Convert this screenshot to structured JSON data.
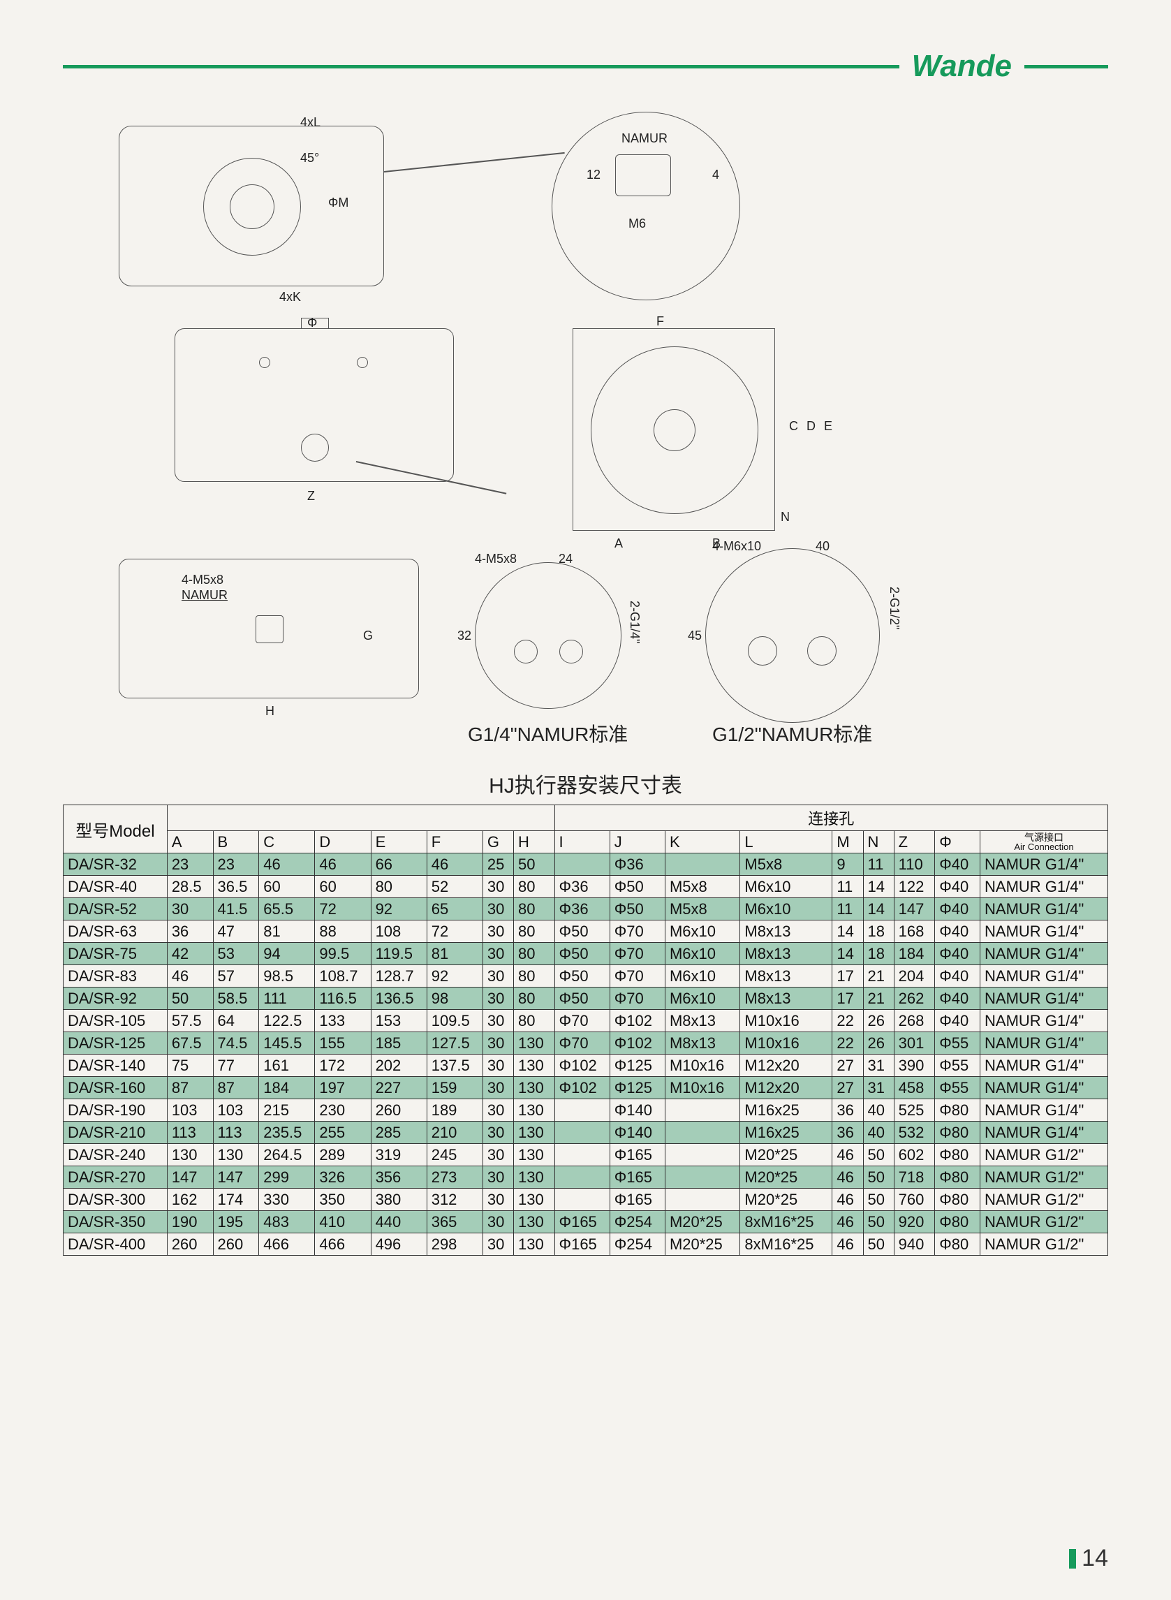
{
  "brand": "Wande",
  "diagrams": {
    "top_view_labels": {
      "holes_top": "4xL",
      "angle": "45°",
      "holes_bottom": "4xK",
      "dim_m": "ΦM"
    },
    "namur_detail": {
      "title": "NAMUR",
      "h1": "12",
      "h2": "4",
      "thread": "M6"
    },
    "side_view": {
      "dim_z": "Z",
      "dim_phi": "Φ"
    },
    "end_view": {
      "F": "F",
      "A": "A",
      "B": "B",
      "C": "C",
      "D": "D",
      "E": "E",
      "N": "N"
    },
    "bottom_view": {
      "callout": "4-M5x8",
      "namur": "NAMUR",
      "G": "G",
      "H": "H"
    },
    "g14_detail": {
      "callout": "4-M5x8",
      "w": "24",
      "h": "32",
      "port": "2-G1/4\"",
      "caption": "G1/4\"NAMUR标准"
    },
    "g12_detail": {
      "callout": "4-M6x10",
      "w": "40",
      "h": "45",
      "port": "2-G1/2\"",
      "caption": "G1/2\"NAMUR标准"
    }
  },
  "table": {
    "title": "HJ执行器安装尺寸表",
    "model_header": "型号Model",
    "group_header": "连接孔",
    "air_header_cn": "气源接口",
    "air_header_en": "Air Connection",
    "cols": [
      "A",
      "B",
      "C",
      "D",
      "E",
      "F",
      "G",
      "H",
      "I",
      "J",
      "K",
      "L",
      "M",
      "N",
      "Z",
      "Φ"
    ],
    "rows": [
      {
        "m": "DA/SR-32",
        "v": [
          "23",
          "23",
          "46",
          "46",
          "66",
          "46",
          "25",
          "50",
          "",
          "Φ36",
          "",
          "M5x8",
          "9",
          "11",
          "110",
          "Φ40",
          "NAMUR G1/4\""
        ],
        "s": true
      },
      {
        "m": "DA/SR-40",
        "v": [
          "28.5",
          "36.5",
          "60",
          "60",
          "80",
          "52",
          "30",
          "80",
          "Φ36",
          "Φ50",
          "M5x8",
          "M6x10",
          "11",
          "14",
          "122",
          "Φ40",
          "NAMUR G1/4\""
        ],
        "s": false
      },
      {
        "m": "DA/SR-52",
        "v": [
          "30",
          "41.5",
          "65.5",
          "72",
          "92",
          "65",
          "30",
          "80",
          "Φ36",
          "Φ50",
          "M5x8",
          "M6x10",
          "11",
          "14",
          "147",
          "Φ40",
          "NAMUR G1/4\""
        ],
        "s": true
      },
      {
        "m": "DA/SR-63",
        "v": [
          "36",
          "47",
          "81",
          "88",
          "108",
          "72",
          "30",
          "80",
          "Φ50",
          "Φ70",
          "M6x10",
          "M8x13",
          "14",
          "18",
          "168",
          "Φ40",
          "NAMUR G1/4\""
        ],
        "s": false
      },
      {
        "m": "DA/SR-75",
        "v": [
          "42",
          "53",
          "94",
          "99.5",
          "119.5",
          "81",
          "30",
          "80",
          "Φ50",
          "Φ70",
          "M6x10",
          "M8x13",
          "14",
          "18",
          "184",
          "Φ40",
          "NAMUR G1/4\""
        ],
        "s": true
      },
      {
        "m": "DA/SR-83",
        "v": [
          "46",
          "57",
          "98.5",
          "108.7",
          "128.7",
          "92",
          "30",
          "80",
          "Φ50",
          "Φ70",
          "M6x10",
          "M8x13",
          "17",
          "21",
          "204",
          "Φ40",
          "NAMUR G1/4\""
        ],
        "s": false
      },
      {
        "m": "DA/SR-92",
        "v": [
          "50",
          "58.5",
          "111",
          "116.5",
          "136.5",
          "98",
          "30",
          "80",
          "Φ50",
          "Φ70",
          "M6x10",
          "M8x13",
          "17",
          "21",
          "262",
          "Φ40",
          "NAMUR G1/4\""
        ],
        "s": true
      },
      {
        "m": "DA/SR-105",
        "v": [
          "57.5",
          "64",
          "122.5",
          "133",
          "153",
          "109.5",
          "30",
          "80",
          "Φ70",
          "Φ102",
          "M8x13",
          "M10x16",
          "22",
          "26",
          "268",
          "Φ40",
          "NAMUR G1/4\""
        ],
        "s": false
      },
      {
        "m": "DA/SR-125",
        "v": [
          "67.5",
          "74.5",
          "145.5",
          "155",
          "185",
          "127.5",
          "30",
          "130",
          "Φ70",
          "Φ102",
          "M8x13",
          "M10x16",
          "22",
          "26",
          "301",
          "Φ55",
          "NAMUR G1/4\""
        ],
        "s": true
      },
      {
        "m": "DA/SR-140",
        "v": [
          "75",
          "77",
          "161",
          "172",
          "202",
          "137.5",
          "30",
          "130",
          "Φ102",
          "Φ125",
          "M10x16",
          "M12x20",
          "27",
          "31",
          "390",
          "Φ55",
          "NAMUR G1/4\""
        ],
        "s": false
      },
      {
        "m": "DA/SR-160",
        "v": [
          "87",
          "87",
          "184",
          "197",
          "227",
          "159",
          "30",
          "130",
          "Φ102",
          "Φ125",
          "M10x16",
          "M12x20",
          "27",
          "31",
          "458",
          "Φ55",
          "NAMUR G1/4\""
        ],
        "s": true
      },
      {
        "m": "DA/SR-190",
        "v": [
          "103",
          "103",
          "215",
          "230",
          "260",
          "189",
          "30",
          "130",
          "",
          "Φ140",
          "",
          "M16x25",
          "36",
          "40",
          "525",
          "Φ80",
          "NAMUR G1/4\""
        ],
        "s": false
      },
      {
        "m": "DA/SR-210",
        "v": [
          "113",
          "113",
          "235.5",
          "255",
          "285",
          "210",
          "30",
          "130",
          "",
          "Φ140",
          "",
          "M16x25",
          "36",
          "40",
          "532",
          "Φ80",
          "NAMUR G1/4\""
        ],
        "s": true
      },
      {
        "m": "DA/SR-240",
        "v": [
          "130",
          "130",
          "264.5",
          "289",
          "319",
          "245",
          "30",
          "130",
          "",
          "Φ165",
          "",
          "M20*25",
          "46",
          "50",
          "602",
          "Φ80",
          "NAMUR G1/2\""
        ],
        "s": false
      },
      {
        "m": "DA/SR-270",
        "v": [
          "147",
          "147",
          "299",
          "326",
          "356",
          "273",
          "30",
          "130",
          "",
          "Φ165",
          "",
          "M20*25",
          "46",
          "50",
          "718",
          "Φ80",
          "NAMUR G1/2\""
        ],
        "s": true
      },
      {
        "m": "DA/SR-300",
        "v": [
          "162",
          "174",
          "330",
          "350",
          "380",
          "312",
          "30",
          "130",
          "",
          "Φ165",
          "",
          "M20*25",
          "46",
          "50",
          "760",
          "Φ80",
          "NAMUR G1/2\""
        ],
        "s": false
      },
      {
        "m": "DA/SR-350",
        "v": [
          "190",
          "195",
          "483",
          "410",
          "440",
          "365",
          "30",
          "130",
          "Φ165",
          "Φ254",
          "M20*25",
          "8xM16*25",
          "46",
          "50",
          "920",
          "Φ80",
          "NAMUR G1/2\""
        ],
        "s": true
      },
      {
        "m": "DA/SR-400",
        "v": [
          "260",
          "260",
          "466",
          "466",
          "496",
          "298",
          "30",
          "130",
          "Φ165",
          "Φ254",
          "M20*25",
          "8xM16*25",
          "46",
          "50",
          "940",
          "Φ80",
          "NAMUR G1/2\""
        ],
        "s": false
      }
    ]
  },
  "page_number": "14"
}
